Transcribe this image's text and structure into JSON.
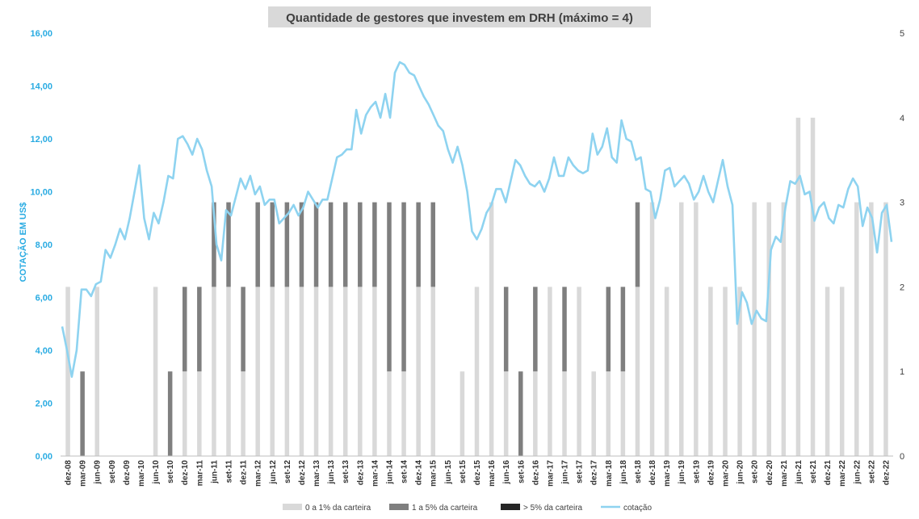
{
  "chart_data": {
    "type": "bar+line",
    "title": "Quantidade de gestores que investem em DRH (máximo = 4)",
    "ylabel_left": "COTAÇÃO EM US$",
    "ylim_left": [
      0,
      16
    ],
    "yticks_left": [
      "0,00",
      "2,00",
      "4,00",
      "6,00",
      "8,00",
      "10,00",
      "12,00",
      "14,00",
      "16,00"
    ],
    "ylim_right": [
      0,
      5
    ],
    "yticks_right": [
      "0",
      "1",
      "2",
      "3",
      "4",
      "5"
    ],
    "x_labels": [
      "dez-08",
      "mar-09",
      "jun-09",
      "set-09",
      "dez-09",
      "mar-10",
      "jun-10",
      "set-10",
      "dez-10",
      "mar-11",
      "jun-11",
      "set-11",
      "dez-11",
      "mar-12",
      "jun-12",
      "set-12",
      "dez-12",
      "mar-13",
      "jun-13",
      "set-13",
      "dez-13",
      "mar-14",
      "jun-14",
      "set-14",
      "dez-14",
      "mar-15",
      "jun-15",
      "set-15",
      "dez-15",
      "mar-16",
      "jun-16",
      "set-16",
      "dez-16",
      "mar-17",
      "jun-17",
      "set-17",
      "dez-17",
      "mar-18",
      "jun-18",
      "set-18",
      "dez-18",
      "mar-19",
      "jun-19",
      "set-19",
      "dez-19",
      "mar-20",
      "jun-20",
      "set-20",
      "dez-20",
      "mar-21",
      "jun-21",
      "set-21",
      "dez-21",
      "mar-22",
      "jun-22",
      "set-22",
      "dez-22"
    ],
    "x_labels_compact": [
      "dez-08",
      "mar-09",
      "jun-09",
      "set-09",
      "dez-09",
      "mar-10",
      "jun-10",
      "set-10",
      "dez-10",
      "mar-11",
      "jun-11",
      "set-11",
      "dez-11",
      "mar-12",
      "jun-12",
      "set-12",
      "dez-12",
      "mar-13",
      "jun-13",
      "set-13",
      "dez-13",
      "mar-14",
      "jun-14",
      "set-14",
      "dez-14",
      "mar-15",
      "jun-15",
      "set-15",
      "dez-15",
      "mar-16",
      "jun-16",
      "set-16",
      "dez-16",
      "mar-17",
      "jun-17",
      "set-17",
      "dez-17",
      "mar-18",
      "jun-18",
      "set-18",
      "dez-18",
      "mar-19",
      "jun-19",
      "set-19",
      "dez-19",
      "mar-20",
      "jun-20",
      "set-20",
      "dez-20",
      "mar-21",
      "jun-21",
      "set-21",
      "dez-21",
      "mar-22",
      "jun-22",
      "set-22",
      "dez-22"
    ],
    "series": [
      {
        "name": "0 a 1% da carteira",
        "color": "#D9D9D9",
        "axis": "right",
        "values": [
          2,
          0,
          2,
          0,
          0,
          0,
          2,
          0,
          1,
          1,
          2,
          2,
          1,
          2,
          2,
          2,
          2,
          2,
          2,
          2,
          2,
          2,
          1,
          1,
          2,
          2,
          0,
          1,
          2,
          3,
          1,
          0,
          1,
          2,
          1,
          2,
          1,
          1,
          1,
          2,
          3,
          2,
          3,
          3,
          2,
          2,
          2,
          3,
          3,
          3,
          4,
          4,
          2,
          2,
          3,
          3,
          3
        ]
      },
      {
        "name": "1 a 5% da carteira",
        "color": "#7F7F7F",
        "axis": "right",
        "values": [
          0,
          1,
          0,
          0,
          0,
          0,
          0,
          1,
          1,
          1,
          1,
          1,
          1,
          1,
          1,
          1,
          1,
          1,
          1,
          1,
          1,
          1,
          2,
          2,
          1,
          1,
          0,
          0,
          0,
          0,
          1,
          1,
          1,
          0,
          1,
          0,
          0,
          1,
          1,
          1,
          0,
          0,
          0,
          0,
          0,
          0,
          0,
          0,
          0,
          0,
          0,
          0,
          0,
          0,
          0,
          0,
          0
        ]
      },
      {
        "name": "> 5% da carteira",
        "color": "#262626",
        "axis": "right",
        "values": [
          0,
          0,
          0,
          0,
          0,
          0,
          0,
          0,
          0,
          0,
          0,
          0,
          0,
          0,
          0,
          0,
          0,
          0,
          0,
          0,
          0,
          0,
          0,
          0,
          0,
          0,
          0,
          0,
          0,
          0,
          0,
          0,
          0,
          0,
          0,
          0,
          0,
          0,
          0,
          0,
          0,
          0,
          0,
          0,
          0,
          0,
          0,
          0,
          0,
          0,
          0,
          0,
          0,
          0,
          0,
          0,
          0
        ]
      },
      {
        "name": "cotação",
        "color": "#8ED3F0",
        "axis": "left",
        "type": "line",
        "values": [
          4.9,
          4.0,
          3.0,
          4.0,
          6.3,
          6.3,
          6.05,
          6.5,
          6.6,
          7.8,
          7.5,
          8.0,
          8.6,
          8.2,
          9.0,
          10.0,
          11.0,
          9.0,
          8.2,
          9.2,
          8.8,
          9.6,
          10.6,
          10.5,
          12.0,
          12.1,
          11.8,
          11.4,
          12.0,
          11.6,
          10.8,
          10.2,
          8.0,
          7.4,
          9.3,
          9.1,
          9.8,
          10.5,
          10.1,
          10.6,
          9.9,
          10.2,
          9.5,
          9.7,
          9.7,
          8.8,
          9.0,
          9.2,
          9.5,
          9.1,
          9.4,
          10.0,
          9.7,
          9.4,
          9.7,
          9.7,
          10.5,
          11.3,
          11.4,
          11.6,
          11.6,
          13.1,
          12.2,
          12.9,
          13.2,
          13.4,
          12.8,
          13.7,
          12.8,
          14.5,
          14.9,
          14.8,
          14.5,
          14.4,
          14.0,
          13.6,
          13.3,
          12.9,
          12.5,
          12.3,
          11.6,
          11.1,
          11.7,
          11.0,
          10.0,
          8.5,
          8.2,
          8.6,
          9.2,
          9.5,
          10.1,
          10.1,
          9.6,
          10.4,
          11.2,
          11.0,
          10.6,
          10.3,
          10.2,
          10.4,
          10.0,
          10.5,
          11.3,
          10.6,
          10.6,
          11.3,
          11.0,
          10.8,
          10.7,
          10.8,
          12.2,
          11.4,
          11.7,
          12.4,
          11.3,
          11.1,
          12.7,
          12.0,
          11.9,
          11.2,
          11.3,
          10.1,
          10.0,
          9.0,
          9.7,
          10.8,
          10.9,
          10.2,
          10.4,
          10.6,
          10.3,
          9.7,
          10.0,
          10.6,
          10.0,
          9.6,
          10.4,
          11.2,
          10.2,
          9.5,
          5.0,
          6.2,
          5.8,
          5.0,
          5.5,
          5.2,
          5.1,
          7.8,
          8.3,
          8.1,
          9.4,
          10.4,
          10.3,
          10.6,
          9.9,
          10.0,
          8.9,
          9.4,
          9.6,
          9.0,
          8.8,
          9.5,
          9.4,
          10.1,
          10.5,
          10.2,
          8.7,
          9.4,
          9.0,
          7.7,
          9.2,
          9.5,
          8.1
        ]
      }
    ],
    "legend": [
      "0 a 1% da carteira",
      "1 a 5% da carteira",
      "> 5% da carteira",
      "cotação"
    ],
    "legend_position": "bottom",
    "grid": false
  }
}
